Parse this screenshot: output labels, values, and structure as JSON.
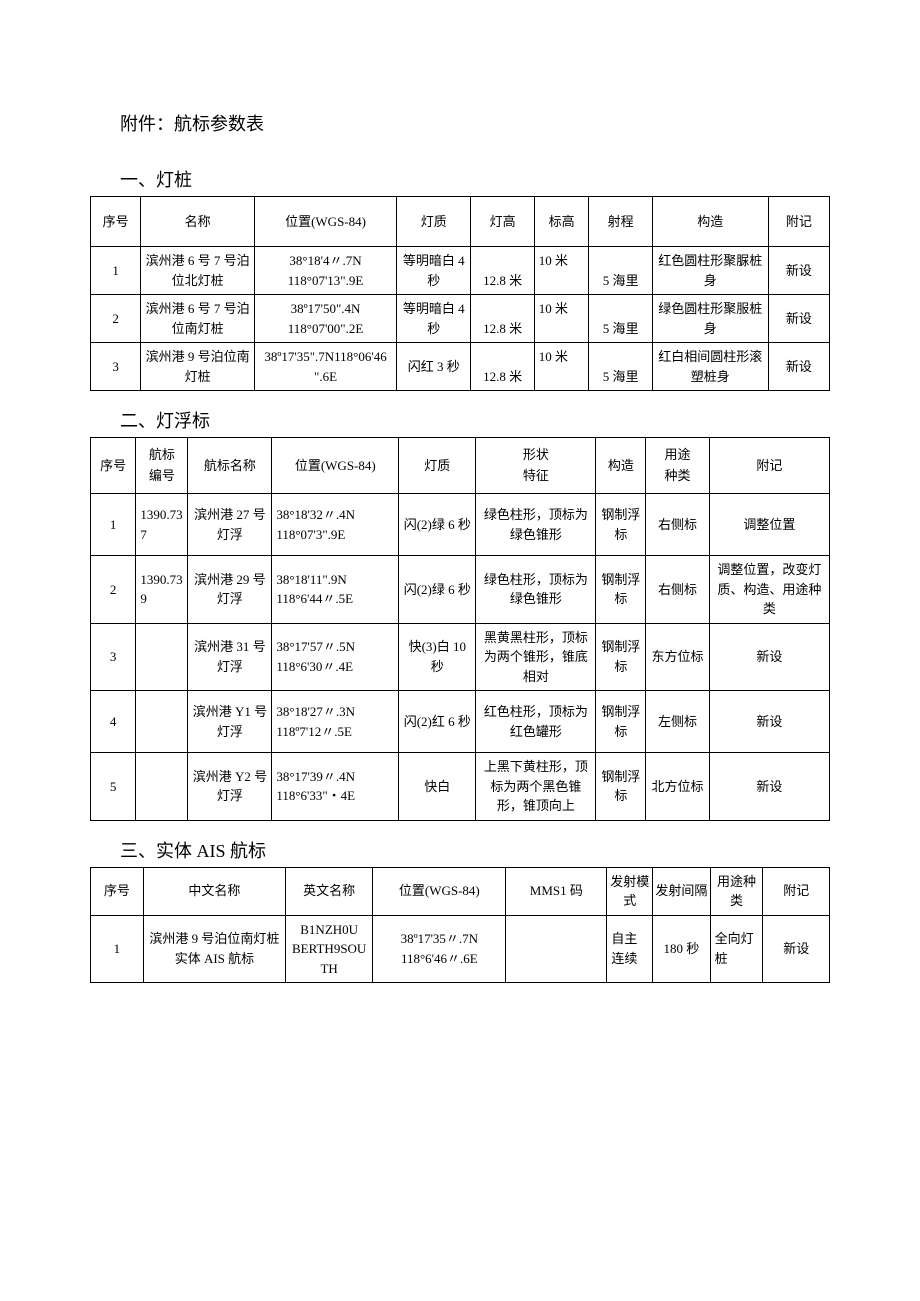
{
  "attachment_title": "附件：航标参数表",
  "sections": {
    "s1": {
      "title": "一、灯桩",
      "columns": [
        "序号",
        "名称",
        "位置(WGS-84)",
        "灯质",
        "灯高",
        "标高",
        "射程",
        "构造",
        "附记"
      ],
      "rows": [
        {
          "no": "1",
          "name": "滨州港 6 号 7 号泊位北灯桩",
          "pos_l1": "38°18'4〃.7N",
          "pos_l2": "118°07'13\".9E",
          "light": "等明暗白 4 秒",
          "lamp_h": "12.8 米",
          "mark_h": "10 米",
          "range": "5 海里",
          "struct": "红色圆柱形聚脲桩身",
          "note": "新设"
        },
        {
          "no": "2",
          "name": "滨州港 6 号 7 号泊位南灯桩",
          "pos_l1": "38º17'50\".4N",
          "pos_l2": "118°07'00\".2E",
          "light": "等明暗白 4 秒",
          "lamp_h": "12.8 米",
          "mark_h": "10 米",
          "range": "5 海里",
          "struct": "绿色圆柱形聚服桩身",
          "note": "新设"
        },
        {
          "no": "3",
          "name": "滨州港 9 号泊位南灯桩",
          "pos_l1": "38º17'35\".7N118°06'46",
          "pos_l2": "\".6E",
          "light": "闪红 3 秒",
          "lamp_h": "12.8 米",
          "mark_h": "10 米",
          "range": "5 海里",
          "struct": "红白相间圆柱形滚塑桩身",
          "note": "新设"
        }
      ]
    },
    "s2": {
      "title": "二、灯浮标",
      "columns": {
        "c1": "序号",
        "c2a": "航标",
        "c2b": "编号",
        "c3": "航标名称",
        "c4": "位置(WGS-84)",
        "c5": "灯质",
        "c6a": "形状",
        "c6b": "特征",
        "c7": "构造",
        "c8a": "用途",
        "c8b": "种类",
        "c9": "附记"
      },
      "rows": [
        {
          "no": "1",
          "code": "1390.737",
          "name": "滨州港 27 号灯浮",
          "pos_l1": "38°18'32〃.4N",
          "pos_l2": "118°07'3\".9E",
          "light": "闪(2)绿 6 秒",
          "shape": "绿色柱形，顶标为绿色锥形",
          "struct": "钢制浮标",
          "use": "右侧标",
          "note": "调整位置"
        },
        {
          "no": "2",
          "code": "1390.739",
          "name": "滨州港 29 号灯浮",
          "pos_l1": "38°18'11\".9N",
          "pos_l2": "118°6'44〃.5E",
          "light": "闪(2)绿 6 秒",
          "shape": "绿色柱形，顶标为绿色锥形",
          "struct": "钢制浮标",
          "use": "右侧标",
          "note": "调整位置，改变灯质、构造、用途种类"
        },
        {
          "no": "3",
          "code": "",
          "name": "滨州港 31 号灯浮",
          "pos_l1": "38°17'57〃.5N",
          "pos_l2": "118°6'30〃.4E",
          "light": "快(3)白 10 秒",
          "shape": "黑黄黑柱形，顶标为两个锥形，锥底相对",
          "struct": "钢制浮标",
          "use": "东方位标",
          "note": "新设"
        },
        {
          "no": "4",
          "code": "",
          "name": "滨州港 Y1 号灯浮",
          "pos_l1": "38°18'27〃.3N",
          "pos_l2": "118º7'12〃.5E",
          "light": "闪(2)红 6 秒",
          "shape": "红色柱形，顶标为红色罐形",
          "struct": "钢制浮标",
          "use": "左侧标",
          "note": "新设"
        },
        {
          "no": "5",
          "code": "",
          "name": "滨州港 Y2 号灯浮",
          "pos_l1": "38°17'39〃.4N",
          "pos_l2": "118°6'33\"・4E",
          "light": "快白",
          "shape": "上黑下黄柱形，顶标为两个黑色锥形，锥顶向上",
          "struct": "钢制浮标",
          "use": "北方位标",
          "note": "新设"
        }
      ]
    },
    "s3": {
      "title": "三、实体 AIS 航标",
      "columns": {
        "c1": "序号",
        "c2": "中文名称",
        "c3": "英文名称",
        "c4": "位置(WGS-84)",
        "c5": "MMS1 码",
        "c6": "发射模式",
        "c7": "发射间隔",
        "c8": "用途种类",
        "c9": "附记"
      },
      "rows": [
        {
          "no": "1",
          "cn": "滨州港 9 号泊位南灯桩实体 AIS 航标",
          "en": "B1NZH0U BERTH9SOUTH",
          "pos_l1": "38º17'35〃.7N",
          "pos_l2": "118°6'46〃.6E",
          "mms1": "",
          "mode": "自主连续",
          "interval": "180 秒",
          "use": "全向灯桩",
          "note": "新设"
        }
      ]
    }
  }
}
